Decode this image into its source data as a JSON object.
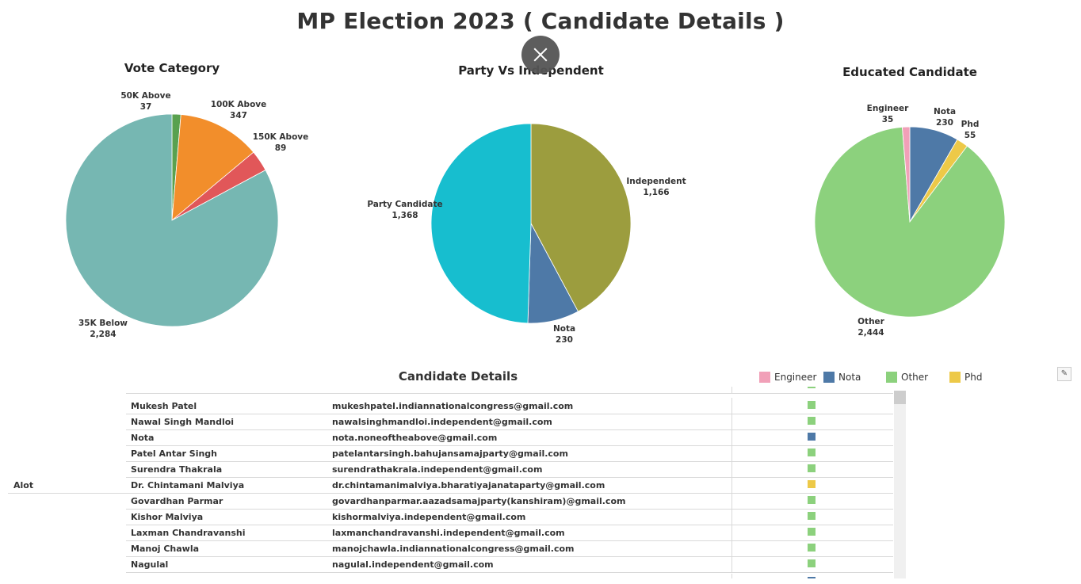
{
  "page": {
    "title": "MP Election 2023 ( Candidate Details )"
  },
  "chart_data": [
    {
      "type": "pie",
      "title": "Vote Category",
      "slices": [
        {
          "label": "50K Above",
          "value": 37,
          "value_text": "37",
          "color": "#59a14f"
        },
        {
          "label": "100K Above",
          "value": 347,
          "value_text": "347",
          "color": "#f28e2b"
        },
        {
          "label": "150K Above",
          "value": 89,
          "value_text": "89",
          "color": "#e15759"
        },
        {
          "label": "35K Below",
          "value": 2284,
          "value_text": "2,284",
          "color": "#76b7b2"
        }
      ]
    },
    {
      "type": "pie",
      "title": "Party Vs Independent",
      "slices": [
        {
          "label": "Independent",
          "value": 1166,
          "value_text": "1,166",
          "color": "#9c9d3e"
        },
        {
          "label": "Nota",
          "value": 230,
          "value_text": "230",
          "color": "#4e79a7"
        },
        {
          "label": "Party Candidate",
          "value": 1368,
          "value_text": "1,368",
          "color": "#17becf"
        }
      ]
    },
    {
      "type": "pie",
      "title": "Educated Candidate",
      "slices": [
        {
          "label": "Nota",
          "value": 230,
          "value_text": "230",
          "color": "#4e79a7"
        },
        {
          "label": "Phd",
          "value": 55,
          "value_text": "55",
          "color": "#edc948"
        },
        {
          "label": "Other",
          "value": 2444,
          "value_text": "2,444",
          "color": "#8cd17d"
        },
        {
          "label": "Engineer",
          "value": 35,
          "value_text": "35",
          "color": "#f1a0b8"
        }
      ]
    }
  ],
  "table": {
    "title": "Candidate Details",
    "legend": [
      {
        "label": "Engineer",
        "color": "#f1a0b8"
      },
      {
        "label": "Nota",
        "color": "#4e79a7"
      },
      {
        "label": "Other",
        "color": "#8cd17d"
      },
      {
        "label": "Phd",
        "color": "#edc948"
      }
    ],
    "rows": [
      {
        "group": "",
        "name": "Mukesh Patel",
        "email": "mukeshpatel.indiannationalcongress@gmail.com",
        "education": "Other"
      },
      {
        "group": "",
        "name": "Nawal Singh Mandloi",
        "email": "nawalsinghmandloi.independent@gmail.com",
        "education": "Other"
      },
      {
        "group": "",
        "name": "Nota",
        "email": "nota.noneoftheabove@gmail.com",
        "education": "Nota"
      },
      {
        "group": "",
        "name": "Patel Antar Singh",
        "email": "patelantarsingh.bahujansamajparty@gmail.com",
        "education": "Other"
      },
      {
        "group": "",
        "name": "Surendra Thakrala",
        "email": "surendrathakrala.independent@gmail.com",
        "education": "Other"
      },
      {
        "group": "Alot",
        "name": "Dr. Chintamani Malviya",
        "email": "dr.chintamanimalviya.bharatiyajanataparty@gmail.com",
        "education": "Phd"
      },
      {
        "group": "",
        "name": "Govardhan Parmar",
        "email": "govardhanparmar.aazadsamajparty(kanshiram)@gmail.com",
        "education": "Other"
      },
      {
        "group": "",
        "name": "Kishor Malviya",
        "email": "kishormalviya.independent@gmail.com",
        "education": "Other"
      },
      {
        "group": "",
        "name": "Laxman Chandravanshi",
        "email": "laxmanchandravanshi.independent@gmail.com",
        "education": "Other"
      },
      {
        "group": "",
        "name": "Manoj Chawla",
        "email": "manojchawla.indiannationalcongress@gmail.com",
        "education": "Other"
      },
      {
        "group": "",
        "name": "Nagulal",
        "email": "nagulal.independent@gmail.com",
        "education": "Other"
      }
    ]
  }
}
